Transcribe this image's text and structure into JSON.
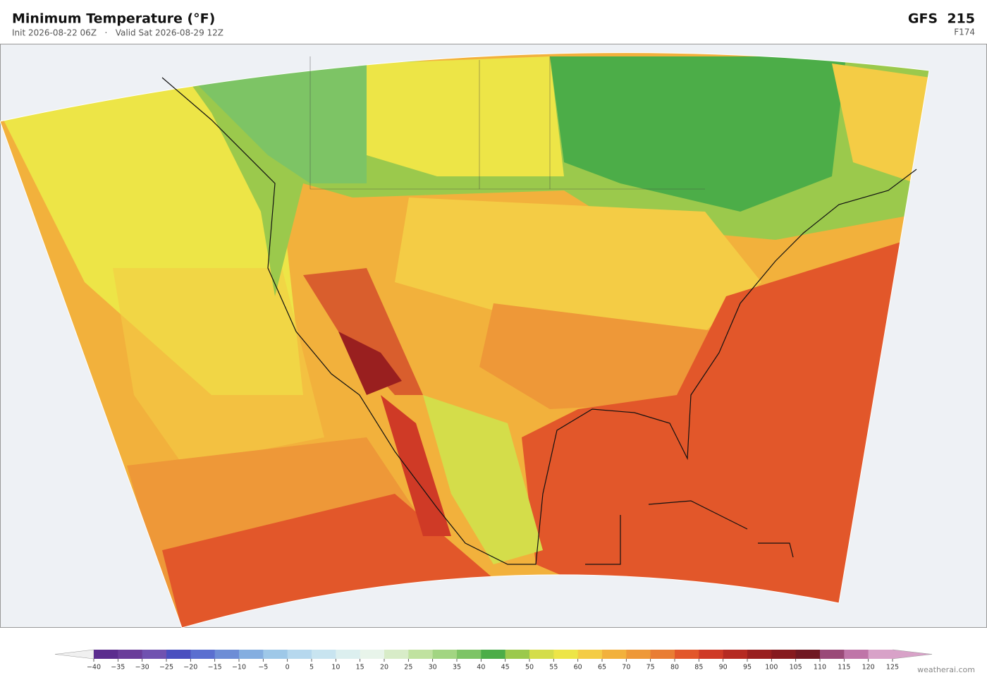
{
  "header": {
    "title": "Minimum Temperature  (°F)",
    "subtitle": "Init 2026-08-22 06Z   ·   Valid Sat 2026-08-29 12Z",
    "model": "GFS  215",
    "forecast_hour": "F174"
  },
  "colorbar": {
    "ticks": [
      {
        "value": -40,
        "label": "−40"
      },
      {
        "value": -35,
        "label": "−35"
      },
      {
        "value": -30,
        "label": "−30"
      },
      {
        "value": -25,
        "label": "−25"
      },
      {
        "value": -20,
        "label": "−20"
      },
      {
        "value": -15,
        "label": "−15"
      },
      {
        "value": -10,
        "label": "−10"
      },
      {
        "value": -5,
        "label": "−5"
      },
      0,
      5,
      10,
      15,
      20,
      25,
      30,
      35,
      40,
      45,
      50,
      55,
      60,
      65,
      70,
      75,
      80,
      85,
      90,
      95,
      100,
      105,
      110,
      115,
      120,
      125
    ],
    "colors": [
      "#5b2d8e",
      "#6a3d9a",
      "#7052b0",
      "#4a4fbf",
      "#5a6fd0",
      "#6d8dd6",
      "#84aee0",
      "#9ec8e8",
      "#b6d8ee",
      "#c8e4f0",
      "#dcefef",
      "#e8f4ea",
      "#d8ecc8",
      "#c0e2a0",
      "#a2d582",
      "#7dc465",
      "#4cad48",
      "#9bc94c",
      "#d4dd4a",
      "#ede547",
      "#f4cc45",
      "#f2b13c",
      "#ee9838",
      "#e97d33",
      "#e2572a",
      "#cf3a26",
      "#b52a22",
      "#991f1f",
      "#861a1e",
      "#701822",
      "#9a4a78",
      "#bf75a8",
      "#d8a2c8"
    ],
    "under_color": "#f0f0f0",
    "over_color": "#d8a2c8"
  },
  "footer": {
    "credit": "weatherai.com"
  }
}
